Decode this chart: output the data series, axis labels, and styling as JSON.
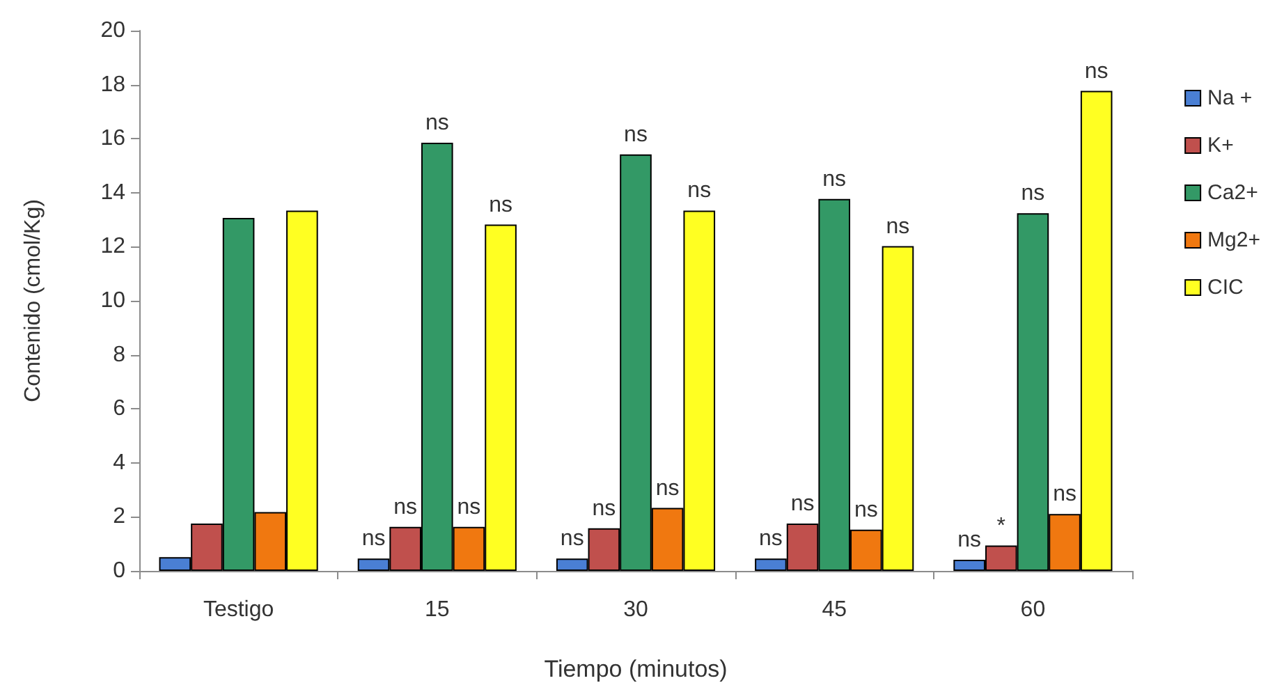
{
  "chart_data": {
    "type": "bar",
    "xlabel": "Tiempo (minutos)",
    "ylabel": "Contenido (cmol/Kg)",
    "categories": [
      "Testigo",
      "15",
      "30",
      "45",
      "60"
    ],
    "series": [
      {
        "name": "Na +",
        "color": "#4a7fd4",
        "values": [
          0.51,
          0.46,
          0.46,
          0.46,
          0.41
        ],
        "value_labels": [
          null,
          "ns",
          "ns",
          "ns",
          "ns"
        ]
      },
      {
        "name": "K+",
        "color": "#c0504d",
        "values": [
          1.75,
          1.63,
          1.58,
          1.75,
          0.94
        ],
        "value_labels": [
          null,
          "ns",
          "ns",
          "ns",
          "*"
        ]
      },
      {
        "name": "Ca2+",
        "color": "#339966",
        "values": [
          13.07,
          15.85,
          15.42,
          13.77,
          13.24
        ],
        "value_labels": [
          null,
          "ns",
          "ns",
          "ns",
          "ns"
        ]
      },
      {
        "name": "Mg2+",
        "color": "#f07810",
        "values": [
          2.18,
          1.63,
          2.33,
          1.53,
          2.11
        ],
        "value_labels": [
          null,
          "ns",
          "ns",
          "ns",
          "ns"
        ]
      },
      {
        "name": "CIC",
        "color": "#ffff22",
        "values": [
          13.34,
          12.82,
          13.34,
          12.02,
          17.77
        ],
        "value_labels": [
          null,
          "ns",
          "ns",
          "ns",
          "ns"
        ]
      }
    ],
    "ylim": [
      0,
      20
    ],
    "yticks": [
      0,
      2,
      4,
      6,
      8,
      10,
      12,
      14,
      16,
      18,
      20
    ],
    "legend": "right"
  }
}
